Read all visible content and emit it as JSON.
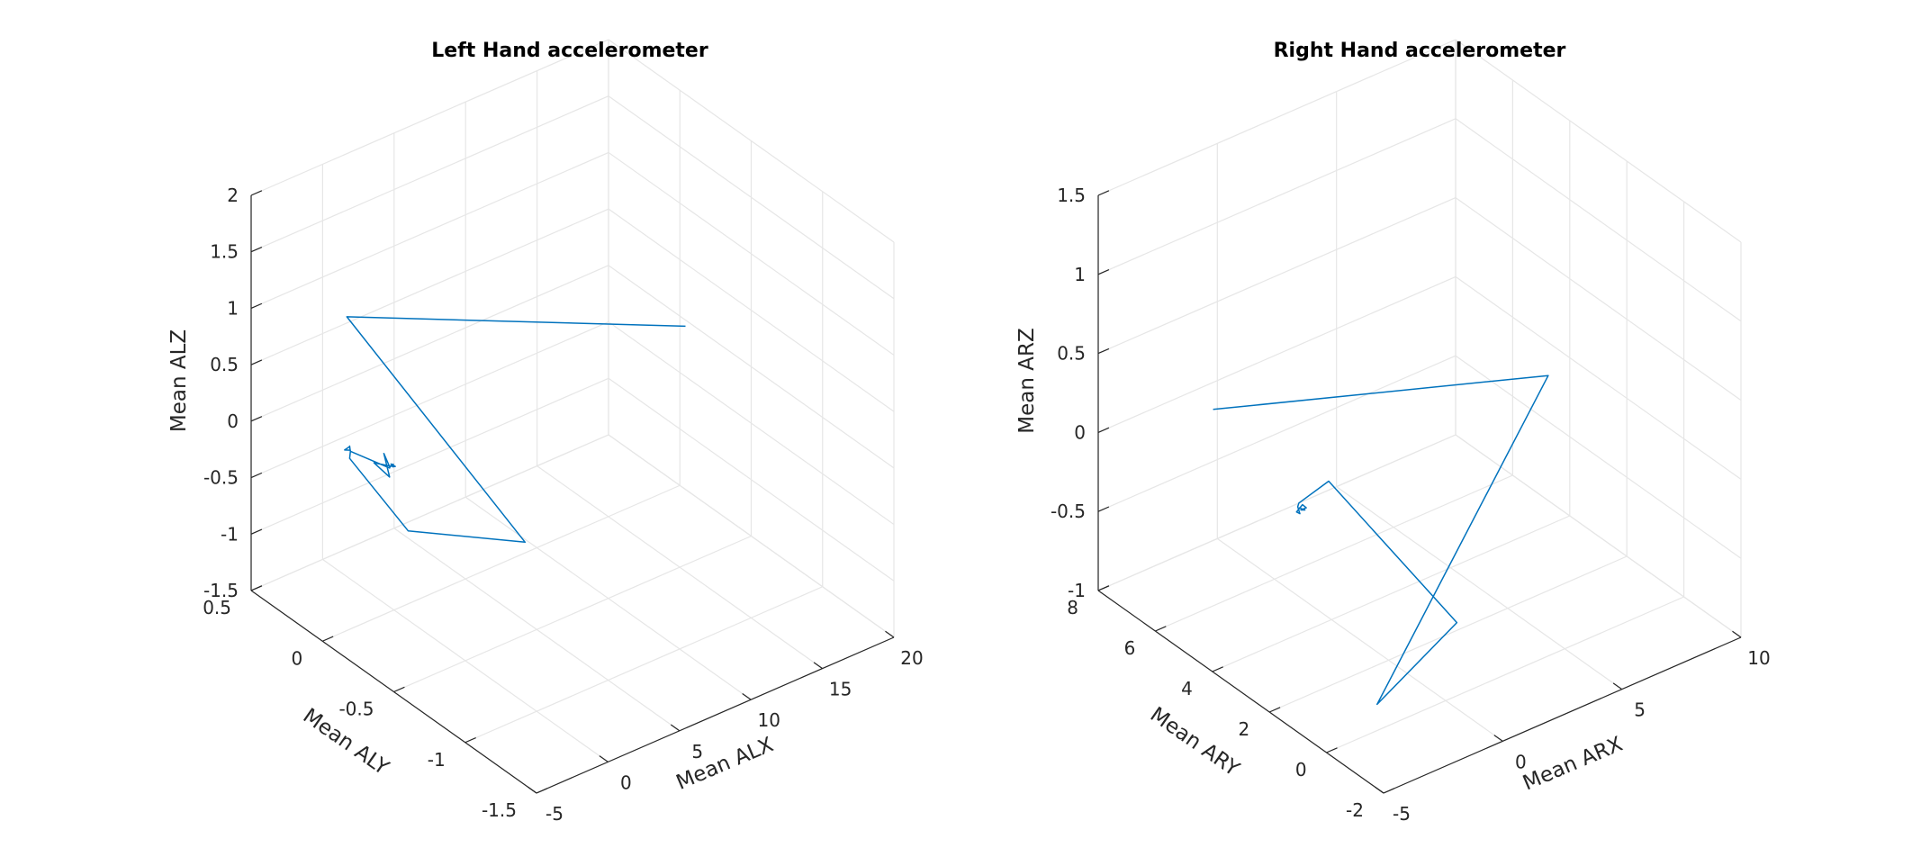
{
  "chart_data": [
    {
      "type": "line3d",
      "title": "Left Hand accelerometer",
      "xlabel": "Mean ALX",
      "ylabel": "Mean ALY",
      "zlabel": "Mean ALZ",
      "xlim": [
        -5,
        20
      ],
      "ylim": [
        -1.5,
        0.5
      ],
      "zlim": [
        -1.5,
        2
      ],
      "xticks": [
        "-5",
        "0",
        "5",
        "10",
        "15",
        "20"
      ],
      "yticks": [
        "-1.5",
        "-1",
        "-0.5",
        "0",
        "0.5"
      ],
      "zticks": [
        "-1.5",
        "-1",
        "-0.5",
        "0",
        "0.5",
        "1",
        "1.5",
        "2"
      ],
      "grid": true,
      "series": [
        {
          "x": [
            17.9,
            -3.1,
            -4.1,
            -4.0,
            -3.9,
            -3.75,
            -3.85,
            -3.95,
            -3.8,
            -3.7,
            -3.85,
            -3.1,
            -3.06,
            -2.95,
            -3.0,
            -2.9,
            -3.0,
            -2.95,
            -2.85,
            -3.0,
            -3.6,
            -3.1,
            -3.7,
            -3.1
          ],
          "y": [
            -0.25,
            0.02,
            -1.33,
            -0.5,
            -0.08,
            -0.07,
            -0.08,
            -0.05,
            -0.07,
            -0.06,
            -0.08,
            -0.28,
            -0.28,
            -0.28,
            -0.28,
            -0.3,
            -0.28,
            -0.29,
            -0.28,
            -0.28,
            -0.22,
            -0.28,
            -0.3,
            -0.28
          ],
          "z": [
            0.25,
            1.25,
            0.52,
            -0.13,
            0.13,
            0.17,
            0.2,
            0.18,
            0.22,
            0.21,
            0.19,
            0.18,
            0.19,
            0.2,
            0.19,
            0.2,
            0.21,
            0.19,
            0.2,
            0.19,
            0.2,
            0.1,
            0.36,
            0.19
          ]
        }
      ]
    },
    {
      "type": "line3d",
      "title": "Right Hand accelerometer",
      "xlabel": "Mean ARX",
      "ylabel": "Mean ARY",
      "zlabel": "Mean ARZ",
      "xlim": [
        -5,
        10
      ],
      "ylim": [
        -2,
        8
      ],
      "zlim": [
        -1,
        1.5
      ],
      "xticks": [
        "-5",
        "0",
        "5",
        "10"
      ],
      "yticks": [
        "-2",
        "0",
        "2",
        "4",
        "6",
        "8"
      ],
      "zticks": [
        "-1",
        "-0.5",
        "0",
        "0.5",
        "1",
        "1.5"
      ],
      "grid": true,
      "series": [
        {
          "x": [
            -0.3,
            8.5,
            -1.8,
            0.95,
            0.6,
            -0.05,
            -0.1,
            0.05,
            -0.15,
            0.1,
            0.2,
            0.15,
            0.2,
            -0.05
          ],
          "y": [
            7.9,
            3.5,
            0.9,
            0.4,
            4.6,
            5.1,
            5.1,
            5.15,
            5.1,
            5.1,
            5.05,
            5.2,
            5.1,
            5.1
          ],
          "z": [
            -0.15,
            0.05,
            -1.02,
            -0.62,
            -0.24,
            -0.4,
            -0.42,
            -0.48,
            -0.45,
            -0.42,
            -0.44,
            -0.47,
            -0.46,
            -0.43
          ]
        }
      ]
    }
  ]
}
